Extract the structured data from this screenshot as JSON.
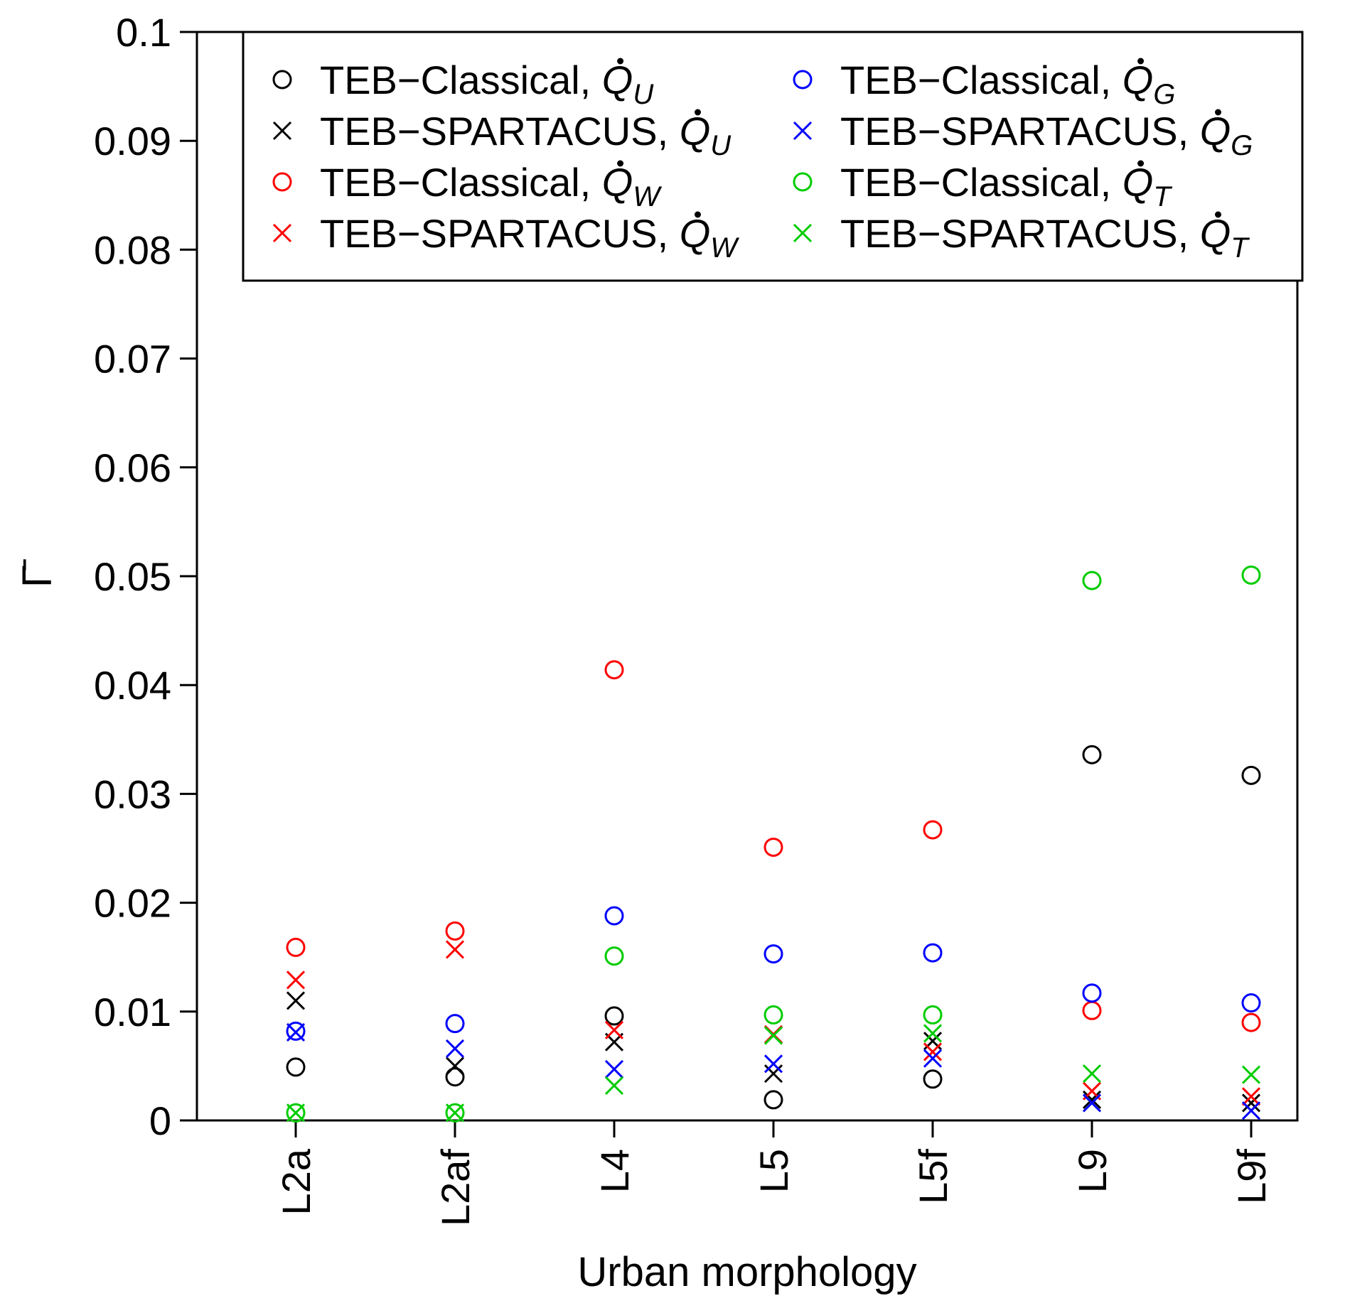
{
  "chart_data": {
    "type": "scatter",
    "title": "",
    "xlabel": "Urban morphology",
    "ylabel": "Γ̄",
    "categories": [
      "L2a",
      "L2af",
      "L4",
      "L5",
      "L5f",
      "L9",
      "L9f"
    ],
    "ylim": [
      0,
      0.1
    ],
    "yticks": [
      "0",
      "0.01",
      "0.02",
      "0.03",
      "0.04",
      "0.05",
      "0.06",
      "0.07",
      "0.08",
      "0.09",
      "0.1"
    ],
    "grid": false,
    "legend_position": "top",
    "colors": {
      "black": "#000000",
      "red": "#ff0000",
      "blue": "#0000ff",
      "green": "#00cc00"
    },
    "series": [
      {
        "name": "TEB−Classical, ",
        "var": "Q",
        "sub": "U",
        "marker": "circle",
        "color": "#000000",
        "values": [
          0.0049,
          0.004,
          0.0096,
          0.0019,
          0.0038,
          0.0336,
          0.0317
        ]
      },
      {
        "name": "TEB−SPARTACUS, ",
        "var": "Q",
        "sub": "U",
        "marker": "cross",
        "color": "#000000",
        "values": [
          0.011,
          0.005,
          0.0072,
          0.0043,
          0.0073,
          0.0019,
          0.0016
        ]
      },
      {
        "name": "TEB−Classical, ",
        "var": "Q",
        "sub": "W",
        "marker": "circle",
        "color": "#ff0000",
        "values": [
          0.0159,
          0.0174,
          0.0414,
          0.0251,
          0.0267,
          0.0101,
          0.009
        ]
      },
      {
        "name": "TEB−SPARTACUS, ",
        "var": "Q",
        "sub": "W",
        "marker": "cross",
        "color": "#ff0000",
        "values": [
          0.0129,
          0.0157,
          0.0083,
          0.0079,
          0.0063,
          0.0027,
          0.0022
        ]
      },
      {
        "name": "TEB−Classical, ",
        "var": "Q",
        "sub": "G",
        "marker": "circle",
        "color": "#0000ff",
        "values": [
          0.0082,
          0.0089,
          0.0188,
          0.0153,
          0.0154,
          0.0117,
          0.0108
        ]
      },
      {
        "name": "TEB−SPARTACUS, ",
        "var": "Q",
        "sub": "G",
        "marker": "cross",
        "color": "#0000ff",
        "values": [
          0.0081,
          0.0066,
          0.0047,
          0.0052,
          0.0057,
          0.0016,
          0.0009
        ]
      },
      {
        "name": "TEB−Classical, ",
        "var": "Q",
        "sub": "T",
        "marker": "circle",
        "color": "#00cc00",
        "values": [
          0.0007,
          0.0007,
          0.0151,
          0.0097,
          0.0097,
          0.0496,
          0.0501
        ]
      },
      {
        "name": "TEB−SPARTACUS, ",
        "var": "Q",
        "sub": "T",
        "marker": "cross",
        "color": "#00cc00",
        "values": [
          0.0007,
          0.0007,
          0.0032,
          0.0078,
          0.008,
          0.0043,
          0.0042
        ]
      }
    ]
  }
}
